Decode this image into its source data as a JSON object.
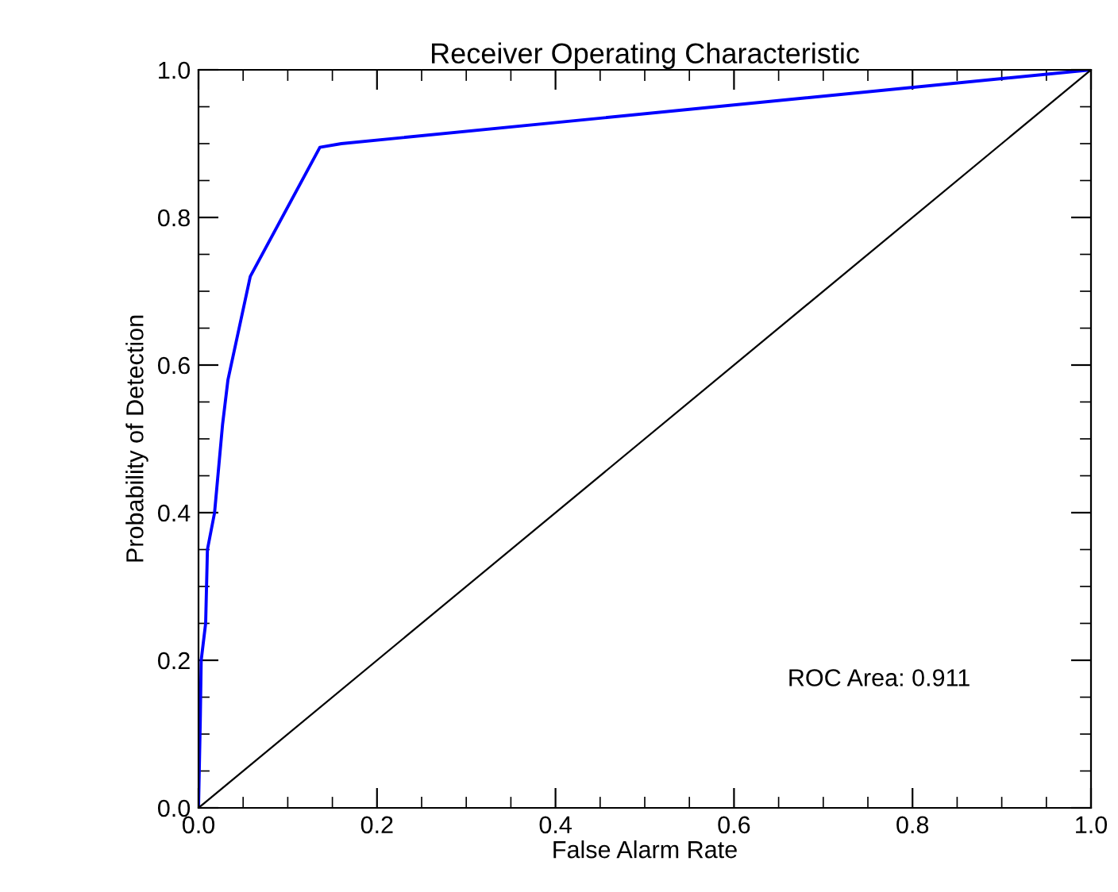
{
  "chart_data": {
    "type": "line",
    "title": "Receiver Operating Characteristic",
    "xlabel": "False Alarm Rate",
    "ylabel": "Probability of Detection",
    "series": [
      {
        "color": "#0000ff",
        "x": [
          0,
          0.002,
          0.003,
          0.008,
          0.01,
          0.018,
          0.027,
          0.033,
          0.058,
          0.136,
          0.16,
          1.0
        ],
        "values": [
          0,
          0.12,
          0.2,
          0.25,
          0.35,
          0.4,
          0.52,
          0.58,
          0.72,
          0.895,
          0.9,
          1.0
        ]
      },
      {
        "color": "#000000",
        "x": [
          0,
          1
        ],
        "values": [
          0,
          1
        ]
      }
    ],
    "annotations": [
      "ROC Area: 0.911"
    ],
    "xlim": [
      0,
      1
    ],
    "ylim": [
      0,
      1
    ],
    "xticks": [
      {
        "value": 0,
        "label": "0.0"
      },
      0.2,
      0.4,
      0.6,
      0.8,
      {
        "value": 1,
        "label": "1.0"
      }
    ],
    "yticks": [
      {
        "value": 0,
        "label": "0.0"
      },
      0.2,
      0.4,
      0.6,
      0.8,
      {
        "value": 1,
        "label": "1.0"
      }
    ],
    "grid": false,
    "legend": false,
    "marker": "none",
    "line_style": "solid"
  }
}
